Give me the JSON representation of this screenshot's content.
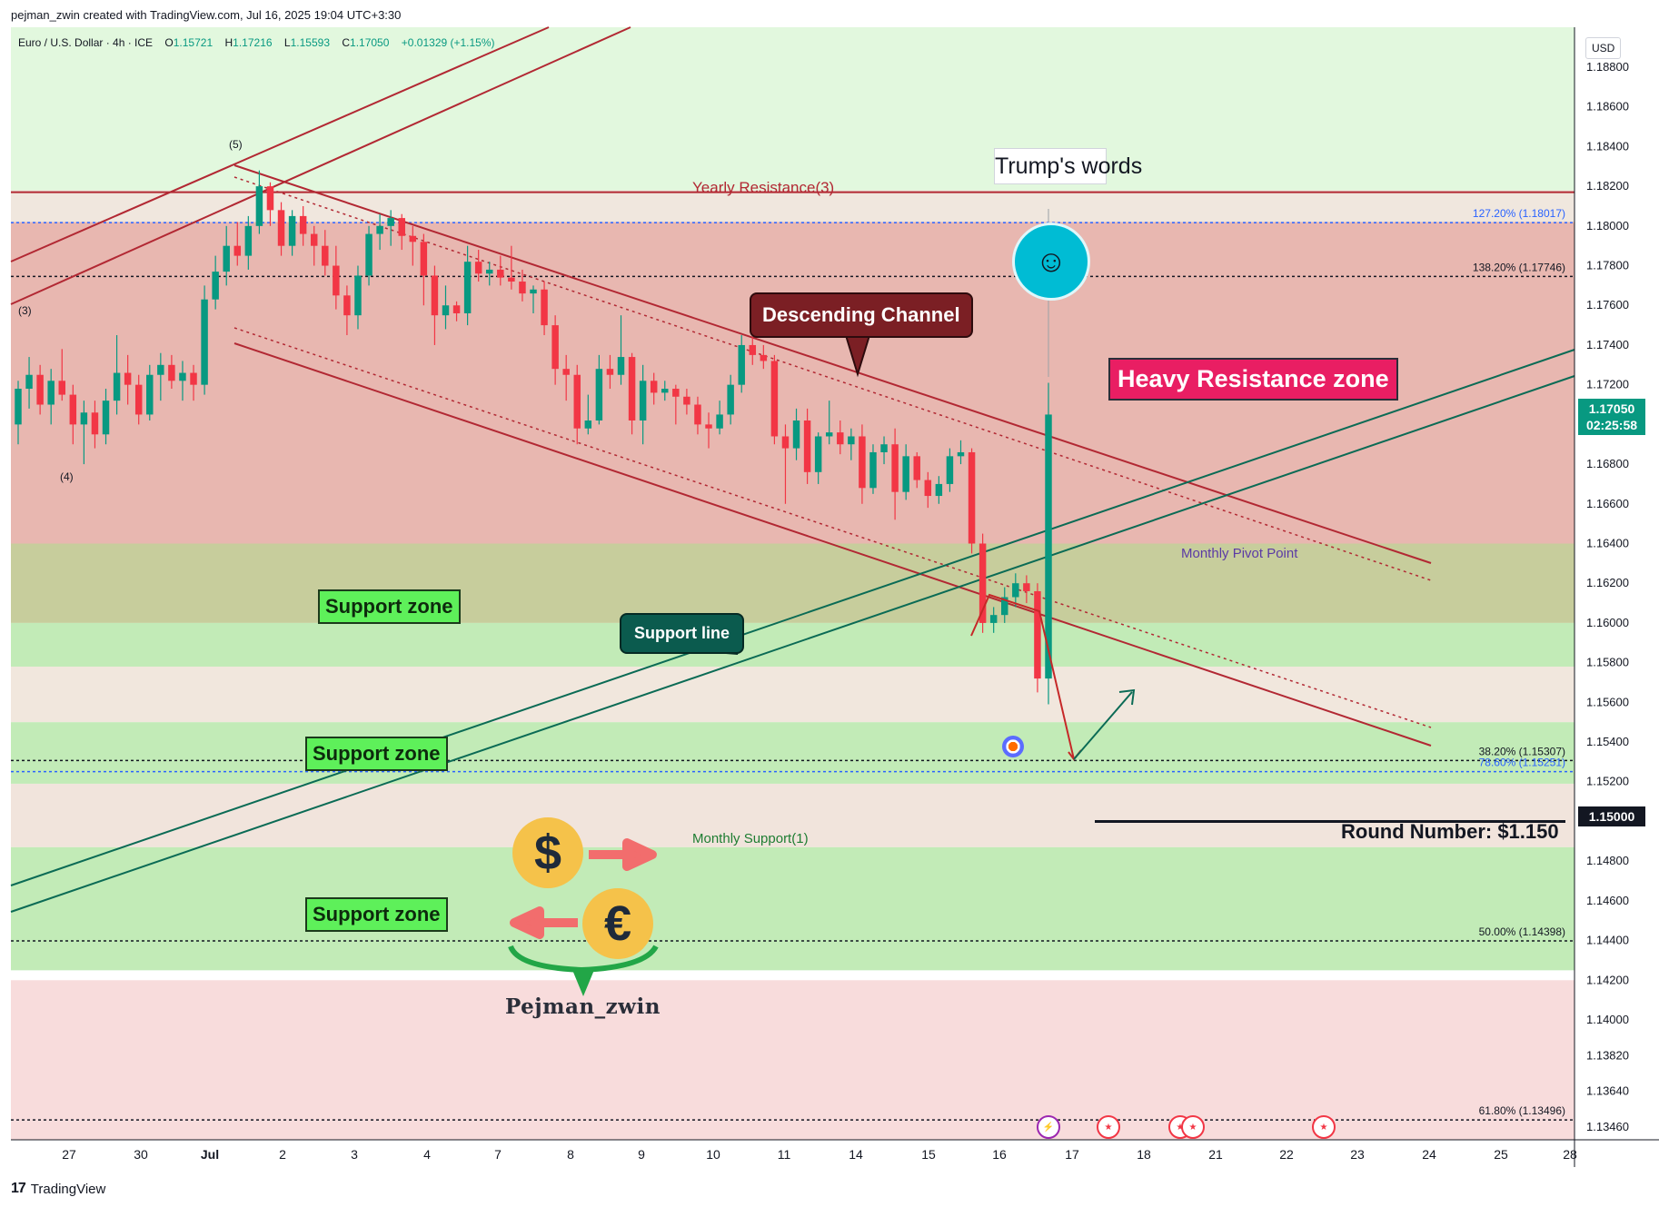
{
  "credit": "pejman_zwin created with TradingView.com, Jul 16, 2025 19:04 UTC+3:30",
  "symbol": {
    "name": "Euro / U.S. Dollar · 4h · ICE",
    "o_label": "O",
    "o": "1.15721",
    "h_label": "H",
    "h": "1.17216",
    "l_label": "L",
    "l": "1.15593",
    "c_label": "C",
    "c": "1.17050",
    "change": "+0.01329 (+1.15%)"
  },
  "price_axis": {
    "currency": "USD",
    "last_price": "1.17050",
    "countdown": "02:25:58",
    "round_price": "1.15000"
  },
  "callouts": {
    "trump": "Trump's words",
    "descending_channel": "Descending Channel",
    "heavy_resistance": "Heavy Resistance zone",
    "support_line": "Support line",
    "support_zone_1": "Support zone",
    "support_zone_2": "Support zone",
    "support_zone_3": "Support zone",
    "round_number": "Round Number: $1.150",
    "brand": "Pejman_zwin"
  },
  "zone_labels": {
    "yearly_resistance": "Yearly Resistance(3)",
    "monthly_pivot": "Monthly Pivot Point",
    "monthly_support": "Monthly Support(1)"
  },
  "fib_levels": [
    {
      "label": "127.20% (1.18017)",
      "value": 1.18017,
      "color": "#2962ff"
    },
    {
      "label": "138.20% (1.17746)",
      "value": 1.17746,
      "color": "#131722"
    },
    {
      "label": "38.20% (1.15307)",
      "value": 1.15307,
      "color": "#131722"
    },
    {
      "label": "78.60% (1.15251)",
      "value": 1.15251,
      "color": "#2962ff"
    },
    {
      "label": "50.00% (1.14398)",
      "value": 1.14398,
      "color": "#131722"
    },
    {
      "label": "61.80% (1.13496)",
      "value": 1.13496,
      "color": "#131722"
    }
  ],
  "wave_labels": [
    "(3)",
    "(4)",
    "(5)"
  ],
  "footer": {
    "brand": "TradingView",
    "mark": "17"
  },
  "icons": {
    "dollar_coin": "$",
    "euro_coin": "€",
    "avatar": "person-icon",
    "target": "target-icon",
    "events": [
      "lightning-event-icon",
      "us-flag-icon",
      "us-flag-icon",
      "us-flag-icon",
      "us-flag-icon"
    ]
  },
  "colors": {
    "bull": "#089981",
    "bear": "#f23645",
    "resistance_zone": "#e8b7b0",
    "pivot_zone": "#c7cd9c",
    "support_zone": "#c2ebb7",
    "channel": "#b22833",
    "support_line": "#0b6b55"
  },
  "chart_data": {
    "type": "candlestick",
    "title": "Euro / U.S. Dollar · 4h · ICE",
    "ylabel": "USD",
    "ylim": [
      1.133,
      1.19
    ],
    "y_ticks": [
      "1.18800",
      "1.18600",
      "1.18400",
      "1.18200",
      "1.18000",
      "1.17800",
      "1.17600",
      "1.17400",
      "1.17200",
      "1.16800",
      "1.16600",
      "1.16400",
      "1.16200",
      "1.16000",
      "1.15800",
      "1.15600",
      "1.15400",
      "1.15200",
      "1.14800",
      "1.14600",
      "1.14400",
      "1.14200",
      "1.14000",
      "1.13820",
      "1.13640",
      "1.13460"
    ],
    "x_ticks": [
      "27",
      "30",
      "Jul",
      "2",
      "3",
      "4",
      "7",
      "8",
      "9",
      "10",
      "11",
      "14",
      "15",
      "16",
      "17",
      "18",
      "21",
      "22",
      "23",
      "24",
      "25",
      "28"
    ],
    "zones": [
      {
        "name": "Heavy Resistance zone",
        "from": 1.164,
        "to": 1.1802
      },
      {
        "name": "Monthly Pivot Point",
        "from": 1.16,
        "to": 1.164
      },
      {
        "name": "Support zone",
        "from": 1.1578,
        "to": 1.16
      },
      {
        "name": "Support zone",
        "from": 1.1519,
        "to": 1.155
      },
      {
        "name": "Support zone",
        "from": 1.1425,
        "to": 1.1487
      }
    ],
    "horizontal_lines": [
      {
        "name": "Yearly Resistance(3)",
        "value": 1.1817
      },
      {
        "name": "Round Number",
        "value": 1.15
      }
    ],
    "candles": [
      [
        1.17,
        1.1722,
        1.169,
        1.1718
      ],
      [
        1.1718,
        1.1734,
        1.1708,
        1.1725
      ],
      [
        1.1725,
        1.173,
        1.1705,
        1.171
      ],
      [
        1.171,
        1.1728,
        1.17,
        1.1722
      ],
      [
        1.1722,
        1.1738,
        1.1712,
        1.1715
      ],
      [
        1.1715,
        1.172,
        1.169,
        1.17
      ],
      [
        1.17,
        1.1712,
        1.168,
        1.1706
      ],
      [
        1.1706,
        1.1712,
        1.1688,
        1.1695
      ],
      [
        1.1695,
        1.1718,
        1.169,
        1.1712
      ],
      [
        1.1712,
        1.1745,
        1.1705,
        1.1726
      ],
      [
        1.1726,
        1.1735,
        1.171,
        1.172
      ],
      [
        1.172,
        1.1725,
        1.17,
        1.1705
      ],
      [
        1.1705,
        1.173,
        1.1702,
        1.1725
      ],
      [
        1.1725,
        1.1736,
        1.1712,
        1.173
      ],
      [
        1.173,
        1.1735,
        1.1718,
        1.1722
      ],
      [
        1.1722,
        1.1732,
        1.1712,
        1.1726
      ],
      [
        1.1726,
        1.173,
        1.1712,
        1.172
      ],
      [
        1.172,
        1.177,
        1.1715,
        1.1763
      ],
      [
        1.1763,
        1.1785,
        1.1758,
        1.1777
      ],
      [
        1.1777,
        1.18,
        1.177,
        1.179
      ],
      [
        1.179,
        1.1802,
        1.178,
        1.1785
      ],
      [
        1.1785,
        1.1805,
        1.1778,
        1.18
      ],
      [
        1.18,
        1.1828,
        1.1796,
        1.182
      ],
      [
        1.182,
        1.1822,
        1.18,
        1.1808
      ],
      [
        1.1808,
        1.1812,
        1.1785,
        1.179
      ],
      [
        1.179,
        1.1808,
        1.1785,
        1.1805
      ],
      [
        1.1805,
        1.181,
        1.179,
        1.1796
      ],
      [
        1.1796,
        1.18,
        1.178,
        1.179
      ],
      [
        1.179,
        1.1798,
        1.1775,
        1.178
      ],
      [
        1.178,
        1.179,
        1.1758,
        1.1765
      ],
      [
        1.1765,
        1.177,
        1.1745,
        1.1755
      ],
      [
        1.1755,
        1.178,
        1.1748,
        1.1775
      ],
      [
        1.1775,
        1.18,
        1.177,
        1.1796
      ],
      [
        1.1796,
        1.1806,
        1.1788,
        1.18
      ],
      [
        1.18,
        1.1808,
        1.179,
        1.1804
      ],
      [
        1.1804,
        1.1806,
        1.1788,
        1.1795
      ],
      [
        1.1795,
        1.18,
        1.178,
        1.1792
      ],
      [
        1.1792,
        1.1796,
        1.176,
        1.1775
      ],
      [
        1.1775,
        1.178,
        1.174,
        1.1755
      ],
      [
        1.1755,
        1.177,
        1.1748,
        1.176
      ],
      [
        1.176,
        1.1762,
        1.1752,
        1.1756
      ],
      [
        1.1756,
        1.179,
        1.175,
        1.1782
      ],
      [
        1.1782,
        1.1788,
        1.1772,
        1.1776
      ],
      [
        1.1776,
        1.1782,
        1.177,
        1.1778
      ],
      [
        1.1778,
        1.1785,
        1.177,
        1.1774
      ],
      [
        1.1774,
        1.179,
        1.1768,
        1.1772
      ],
      [
        1.1772,
        1.1778,
        1.1762,
        1.1766
      ],
      [
        1.1766,
        1.177,
        1.1756,
        1.1768
      ],
      [
        1.1768,
        1.1772,
        1.1745,
        1.175
      ],
      [
        1.175,
        1.1755,
        1.172,
        1.1728
      ],
      [
        1.1728,
        1.1735,
        1.1712,
        1.1725
      ],
      [
        1.1725,
        1.173,
        1.169,
        1.1698
      ],
      [
        1.1698,
        1.1715,
        1.1695,
        1.1702
      ],
      [
        1.1702,
        1.1735,
        1.17,
        1.1728
      ],
      [
        1.1728,
        1.1735,
        1.1718,
        1.1725
      ],
      [
        1.1725,
        1.1755,
        1.172,
        1.1734
      ],
      [
        1.1734,
        1.1736,
        1.1695,
        1.1702
      ],
      [
        1.1702,
        1.173,
        1.169,
        1.1722
      ],
      [
        1.1722,
        1.1726,
        1.171,
        1.1716
      ],
      [
        1.1716,
        1.1722,
        1.1712,
        1.1718
      ],
      [
        1.1718,
        1.172,
        1.17,
        1.1714
      ],
      [
        1.1714,
        1.1718,
        1.1705,
        1.171
      ],
      [
        1.171,
        1.1714,
        1.1695,
        1.17
      ],
      [
        1.17,
        1.1706,
        1.1688,
        1.1698
      ],
      [
        1.1698,
        1.1712,
        1.1695,
        1.1705
      ],
      [
        1.1705,
        1.1725,
        1.17,
        1.172
      ],
      [
        1.172,
        1.1745,
        1.1716,
        1.174
      ],
      [
        1.174,
        1.1744,
        1.173,
        1.1735
      ],
      [
        1.1735,
        1.174,
        1.1728,
        1.1732
      ],
      [
        1.1732,
        1.1735,
        1.169,
        1.1694
      ],
      [
        1.1694,
        1.17,
        1.166,
        1.1688
      ],
      [
        1.1688,
        1.1708,
        1.1682,
        1.1702
      ],
      [
        1.1702,
        1.1708,
        1.167,
        1.1676
      ],
      [
        1.1676,
        1.1696,
        1.167,
        1.1694
      ],
      [
        1.1694,
        1.1712,
        1.169,
        1.1696
      ],
      [
        1.1696,
        1.1702,
        1.1685,
        1.169
      ],
      [
        1.169,
        1.1698,
        1.1682,
        1.1694
      ],
      [
        1.1694,
        1.17,
        1.166,
        1.1668
      ],
      [
        1.1668,
        1.169,
        1.1665,
        1.1686
      ],
      [
        1.1686,
        1.1694,
        1.168,
        1.169
      ],
      [
        1.169,
        1.1698,
        1.1652,
        1.1666
      ],
      [
        1.1666,
        1.169,
        1.1662,
        1.1684
      ],
      [
        1.1684,
        1.1686,
        1.1668,
        1.1672
      ],
      [
        1.1672,
        1.1676,
        1.1658,
        1.1664
      ],
      [
        1.1664,
        1.1674,
        1.166,
        1.167
      ],
      [
        1.167,
        1.1688,
        1.1666,
        1.1684
      ],
      [
        1.1684,
        1.1692,
        1.168,
        1.1686
      ],
      [
        1.1686,
        1.1688,
        1.1635,
        1.164
      ],
      [
        1.164,
        1.1645,
        1.1595,
        1.16
      ],
      [
        1.16,
        1.1608,
        1.1595,
        1.1604
      ],
      [
        1.1604,
        1.1618,
        1.16,
        1.1613
      ],
      [
        1.1613,
        1.1625,
        1.1608,
        1.162
      ],
      [
        1.162,
        1.1624,
        1.161,
        1.1616
      ],
      [
        1.1616,
        1.162,
        1.1565,
        1.1572
      ],
      [
        1.1572,
        1.1721,
        1.1559,
        1.1705
      ]
    ],
    "drawings": {
      "descending_channel_upper": [
        [
          "2025-07-01",
          1.1828
        ],
        [
          "2025-07-24",
          1.1628
        ]
      ],
      "descending_channel_lower": [
        [
          "2025-07-01",
          1.174
        ],
        [
          "2025-07-24",
          1.1532
        ]
      ],
      "support_line": [
        [
          "2025-06-20",
          1.1495
        ],
        [
          "2025-07-28",
          1.1748
        ]
      ],
      "projection": [
        [
          1.1572,
          1.153
        ],
        [
          1.153,
          1.1565
        ]
      ]
    }
  }
}
